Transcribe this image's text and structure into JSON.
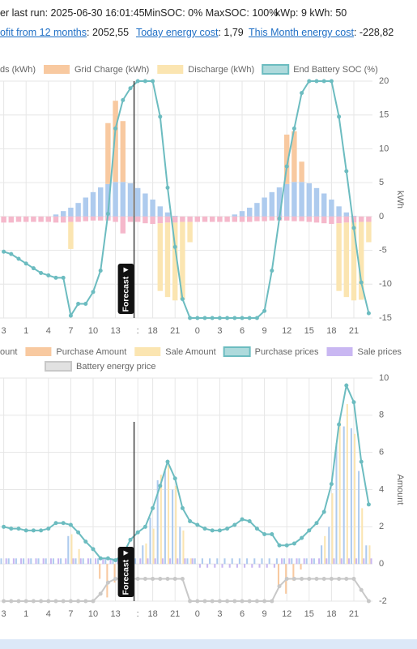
{
  "header": {
    "status": [
      "er last run: 2025-06-30 16:01:45",
      "MinSOC: 0% MaxSOC: 100%",
      "kWp: 9 kWh: 50"
    ],
    "stats": [
      {
        "link": "ofit from 12 months",
        "value": ": 2052,55"
      },
      {
        "link": "Today energy cost",
        "value": ": 1,79"
      },
      {
        "link": "This Month energy cost",
        "value": ": -228,82"
      }
    ]
  },
  "chart_data": [
    {
      "type": "bar",
      "stacked": true,
      "annotation": "Forecast ▼",
      "ylabel": "kWh",
      "categories": [
        "3",
        null,
        null,
        "1",
        null,
        null,
        "4",
        null,
        null,
        "7",
        null,
        null,
        "10",
        null,
        null,
        "13",
        null,
        null,
        ":",
        null,
        "18",
        null,
        null,
        "21",
        null,
        null,
        "0",
        null,
        null,
        "3",
        null,
        null,
        "6",
        null,
        null,
        "9",
        null,
        null,
        "12",
        null,
        null,
        "15",
        null,
        null,
        "18",
        null,
        null,
        "21",
        null,
        null
      ],
      "ylim": [
        -15,
        20
      ],
      "yticks": [
        -15,
        -10,
        -5,
        0,
        5,
        10,
        15,
        20
      ],
      "y2lim": [
        0,
        100
      ],
      "grid": true,
      "series": [
        {
          "color": "#aecbee",
          "values": [
            0,
            0,
            0,
            0,
            0,
            0,
            0,
            0.3,
            0.8,
            1.3,
            2.0,
            2.8,
            3.6,
            4.3,
            4.8,
            5.1,
            5.1,
            4.9,
            4.2,
            3.4,
            2.5,
            1.5,
            0.6,
            0.1,
            0,
            0,
            0,
            0,
            0,
            0,
            0,
            0.3,
            0.8,
            1.3,
            2.0,
            2.8,
            3.6,
            4.3,
            4.8,
            5.1,
            5.1,
            4.9,
            4.2,
            3.4,
            2.5,
            1.5,
            0.6,
            0.1,
            0,
            0
          ]
        },
        {
          "name": "ds (kWh)",
          "color": "#f5b8cb",
          "values": [
            -0.9,
            -0.9,
            -0.8,
            -0.8,
            -0.8,
            -0.8,
            -0.8,
            -0.9,
            -0.9,
            -0.8,
            -0.8,
            -0.7,
            -0.6,
            -0.6,
            -0.6,
            -0.8,
            -2.5,
            -0.8,
            -0.8,
            -1.0,
            -1.1,
            -1.0,
            -0.9,
            -0.9,
            -0.8,
            -0.8,
            -0.8,
            -0.8,
            -0.8,
            -0.8,
            -0.8,
            -0.8,
            -0.8,
            -0.8,
            -0.7,
            -0.7,
            -0.6,
            -0.6,
            -0.6,
            -0.7,
            -0.7,
            -0.8,
            -0.9,
            -1.0,
            -1.1,
            -1.0,
            -0.9,
            -0.9,
            -0.8,
            -0.8
          ]
        },
        {
          "name": "Grid Charge (kWh)",
          "color": "#f8c9a0",
          "values": [
            0,
            0,
            0,
            0,
            0,
            0,
            0,
            0,
            0,
            0,
            0,
            0,
            0,
            0,
            9,
            12,
            9,
            0,
            0,
            0,
            0,
            0,
            0,
            0,
            0,
            0,
            0,
            0,
            0,
            0,
            0,
            0,
            0,
            0,
            0,
            0,
            0,
            0,
            7.3,
            7.5,
            3,
            0,
            0,
            0,
            0,
            0,
            0,
            0,
            0,
            0
          ]
        },
        {
          "name": "Discharge (kWh)",
          "color": "#fbe5b1",
          "values": [
            0,
            0,
            0,
            0,
            0,
            0,
            0,
            0,
            0,
            -4,
            0,
            0,
            0,
            0,
            0,
            0,
            0,
            0,
            0,
            0,
            0,
            -10,
            -11,
            -11.5,
            -11.5,
            -3,
            0,
            0,
            0,
            0,
            0,
            0,
            0,
            0,
            0,
            0,
            0,
            0,
            0,
            0,
            0,
            0,
            0,
            0,
            0,
            -10,
            -11,
            -11.5,
            -11.5,
            -3
          ]
        },
        {
          "name": "End Battery SOC (%)",
          "type": "line",
          "axis": "y2",
          "color": "#6cbcc0",
          "values": [
            28,
            27,
            25,
            23,
            21,
            19,
            18,
            17,
            17,
            1,
            6,
            6,
            11,
            20,
            44,
            80,
            92,
            97,
            100,
            100,
            100,
            85,
            55,
            30,
            8,
            0,
            0,
            0,
            0,
            0,
            0,
            0,
            0,
            0,
            0,
            3,
            20,
            42,
            64,
            80,
            95,
            100,
            100,
            100,
            100,
            85,
            62,
            38,
            15,
            2
          ]
        }
      ]
    },
    {
      "type": "bar",
      "stacked": false,
      "annotation": "Forecast ▼",
      "ylabel": "Amount",
      "categories": [
        "3",
        null,
        null,
        "1",
        null,
        null,
        "4",
        null,
        null,
        "7",
        null,
        null,
        "10",
        null,
        null,
        "13",
        null,
        null,
        ":",
        null,
        "18",
        null,
        null,
        "21",
        null,
        null,
        "0",
        null,
        null,
        "3",
        null,
        null,
        "6",
        null,
        null,
        "9",
        null,
        null,
        "12",
        null,
        null,
        "15",
        null,
        null,
        "18",
        null,
        null,
        "21",
        null,
        null
      ],
      "ylim": [
        -2,
        10
      ],
      "yticks": [
        -2,
        0,
        2,
        4,
        6,
        8,
        10
      ],
      "grid": true,
      "series": [
        {
          "name": "ount",
          "color": "#aecbee",
          "values": [
            0.3,
            0.3,
            0.3,
            0.3,
            0.3,
            0.3,
            0.3,
            0.3,
            0.3,
            1.5,
            0.3,
            0.3,
            0.3,
            0.3,
            0.3,
            0.3,
            0.3,
            0.3,
            0.3,
            1.0,
            2.5,
            4.5,
            5.0,
            4.0,
            2.0,
            0.3,
            0.3,
            0.3,
            0.3,
            0.3,
            0.3,
            0.3,
            0.3,
            0.3,
            0.3,
            0.3,
            0.3,
            0.3,
            0.3,
            0.3,
            0.3,
            0.3,
            0.3,
            1.0,
            2.0,
            6.5,
            7.4,
            7.3,
            5.0,
            1.0
          ]
        },
        {
          "name": "Purchase Amount",
          "color": "#f8c9a0",
          "values": [
            0,
            0,
            0,
            0,
            0,
            0,
            0,
            0,
            0,
            0,
            0,
            0,
            0,
            -0.8,
            -1.8,
            -1.0,
            -0.3,
            0,
            0,
            0,
            0,
            0,
            0,
            0,
            0,
            0,
            0,
            0,
            0,
            0,
            0,
            0,
            0,
            0,
            0,
            0,
            0,
            -1.2,
            -1.6,
            -0.9,
            -0.3,
            0,
            0,
            0,
            0,
            0,
            0,
            0,
            0,
            0
          ]
        },
        {
          "name": "Sale Amount",
          "color": "#fbe5b1",
          "values": [
            0,
            0,
            0,
            0,
            0,
            0,
            0,
            0,
            0,
            1.6,
            0.8,
            0,
            0,
            0,
            0,
            0,
            0,
            0,
            0,
            1.1,
            1.9,
            4.8,
            5.3,
            4.2,
            1.8,
            0.3,
            0,
            0,
            0,
            0,
            0,
            0,
            0,
            0,
            0,
            0,
            0,
            0,
            0,
            0,
            0,
            0,
            0,
            1.5,
            3.8,
            7.8,
            8.6,
            7.0,
            3.0,
            1.0
          ]
        },
        {
          "name": "Purchase prices",
          "type": "line",
          "color": "#6cbcc0",
          "values": [
            2.0,
            1.9,
            1.9,
            1.8,
            1.8,
            1.8,
            1.9,
            2.2,
            2.2,
            2.1,
            1.7,
            1.2,
            0.8,
            0.3,
            0.3,
            0.2,
            0.5,
            1.3,
            1.7,
            2.0,
            3.0,
            4.2,
            5.5,
            4.6,
            3.0,
            2.3,
            2.1,
            1.9,
            1.8,
            1.8,
            1.9,
            2.1,
            2.4,
            2.3,
            1.9,
            1.6,
            1.6,
            1.0,
            1.0,
            1.1,
            1.4,
            1.8,
            2.2,
            2.8,
            4.3,
            7.5,
            9.6,
            8.7,
            5.5,
            3.2
          ]
        },
        {
          "name": "Sale prices",
          "color": "#c9b7f2",
          "values": [
            0.3,
            0.3,
            0.3,
            0.3,
            0.3,
            0.3,
            0.3,
            0.3,
            0.3,
            0.3,
            0.3,
            0.3,
            0.3,
            0.3,
            0.3,
            0.3,
            0.3,
            0.3,
            0.3,
            0.3,
            0.3,
            0.3,
            0.3,
            0.3,
            0.3,
            0.3,
            -0.2,
            -0.2,
            -0.2,
            -0.2,
            -0.2,
            -0.2,
            -0.2,
            -0.2,
            -0.2,
            -0.2,
            -0.2,
            0.3,
            0.3,
            0.3,
            0.3,
            0.3,
            0.3,
            0.3,
            0.3,
            0.3,
            0.3,
            0.3,
            0.3,
            0.3
          ]
        },
        {
          "name": "Battery energy price",
          "type": "line",
          "color": "#c8c8c8",
          "values": [
            -2,
            -2,
            -2,
            -2,
            -2,
            -2,
            -2,
            -2,
            -2,
            -2,
            -2,
            -2,
            -2,
            -1.6,
            -1.0,
            -0.8,
            -0.8,
            -0.8,
            -0.8,
            -0.8,
            -0.8,
            -0.8,
            -0.8,
            -0.8,
            -0.8,
            -2,
            -2,
            -2,
            -2,
            -2,
            -2,
            -2,
            -2,
            -2,
            -2,
            -2,
            -2,
            -1.2,
            -0.8,
            -0.8,
            -0.8,
            -0.8,
            -0.8,
            -0.8,
            -0.8,
            -0.8,
            -0.8,
            -0.8,
            -1.4,
            -2
          ]
        }
      ]
    }
  ]
}
